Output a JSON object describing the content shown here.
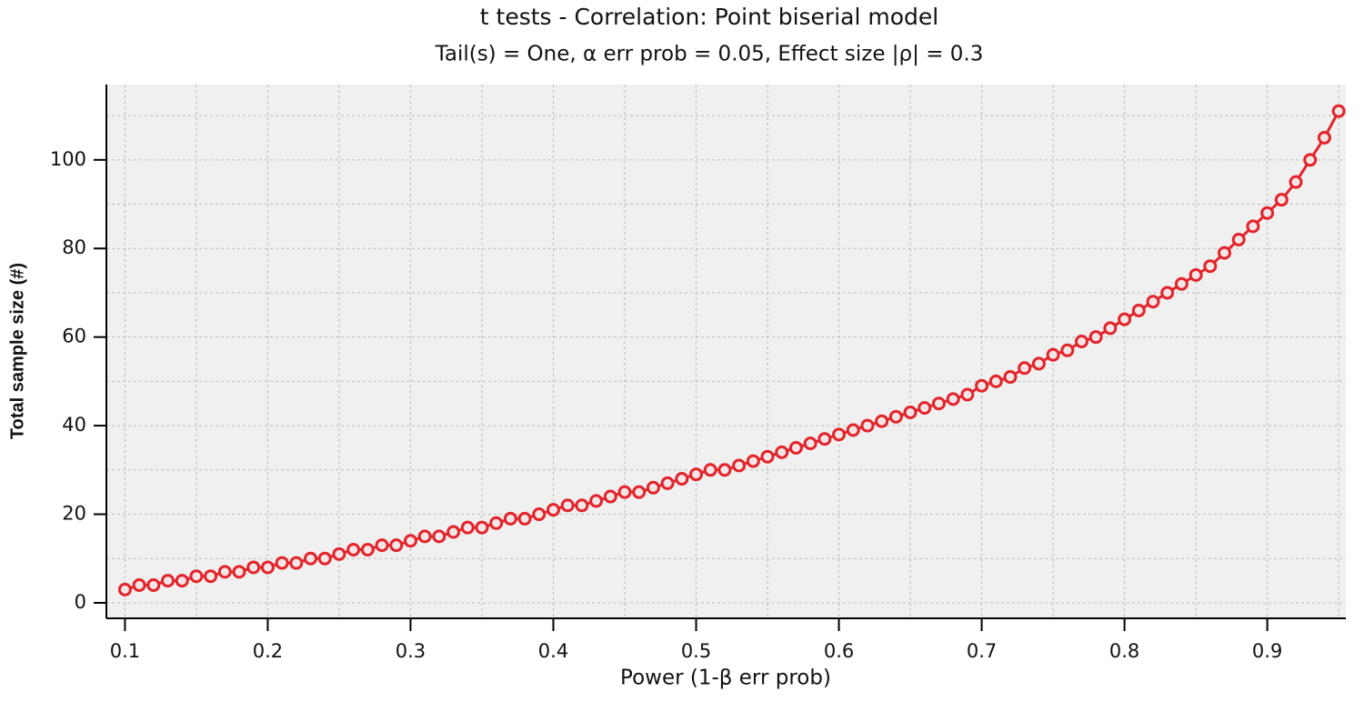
{
  "chart_data": {
    "type": "line",
    "title": "t tests - Correlation: Point biserial model",
    "subtitle": "Tail(s) = One, α err prob = 0.05, Effect size |ρ| = 0.3",
    "x_label": "Power (1-β err prob)",
    "y_label": "Total sample size (#)",
    "x": [
      0.1,
      0.11,
      0.12,
      0.13,
      0.14,
      0.15,
      0.16,
      0.17,
      0.18,
      0.19,
      0.2,
      0.21,
      0.22,
      0.23,
      0.24,
      0.25,
      0.26,
      0.27,
      0.28,
      0.29,
      0.3,
      0.31,
      0.32,
      0.33,
      0.34,
      0.35,
      0.36,
      0.37,
      0.38,
      0.39,
      0.4,
      0.41,
      0.42,
      0.43,
      0.44,
      0.45,
      0.46,
      0.47,
      0.48,
      0.49,
      0.5,
      0.51,
      0.52,
      0.53,
      0.54,
      0.55,
      0.56,
      0.57,
      0.58,
      0.59,
      0.6,
      0.61,
      0.62,
      0.63,
      0.64,
      0.65,
      0.66,
      0.67,
      0.68,
      0.69,
      0.7,
      0.71,
      0.72,
      0.73,
      0.74,
      0.75,
      0.76,
      0.77,
      0.78,
      0.79,
      0.8,
      0.81,
      0.82,
      0.83,
      0.84,
      0.85,
      0.86,
      0.87,
      0.88,
      0.89,
      0.9,
      0.91,
      0.92,
      0.93,
      0.94,
      0.95
    ],
    "values": [
      3,
      4,
      4,
      5,
      5,
      6,
      6,
      7,
      7,
      8,
      8,
      9,
      9,
      10,
      10,
      11,
      12,
      12,
      13,
      13,
      14,
      15,
      15,
      16,
      17,
      17,
      18,
      19,
      19,
      20,
      21,
      22,
      22,
      23,
      24,
      25,
      25,
      26,
      27,
      28,
      29,
      30,
      30,
      31,
      32,
      33,
      34,
      35,
      36,
      37,
      38,
      39,
      40,
      41,
      42,
      43,
      44,
      45,
      46,
      47,
      49,
      50,
      51,
      53,
      54,
      56,
      57,
      59,
      60,
      62,
      64,
      66,
      68,
      70,
      72,
      74,
      76,
      79,
      82,
      85,
      88,
      91,
      95,
      100,
      105,
      111
    ],
    "color": "#e3242b",
    "xlim": [
      0.087,
      0.955
    ],
    "ylim": [
      -3.5,
      117
    ],
    "xticks": [
      0.1,
      0.2,
      0.3,
      0.4,
      0.5,
      0.6,
      0.7,
      0.8,
      0.9
    ],
    "yticks": [
      0,
      20,
      40,
      60,
      80,
      100
    ],
    "xgrid": [
      0.1,
      0.15,
      0.2,
      0.25,
      0.3,
      0.35,
      0.4,
      0.45,
      0.5,
      0.55,
      0.6,
      0.65,
      0.7,
      0.75,
      0.8,
      0.85,
      0.9,
      0.95
    ],
    "ygrid": [
      0,
      10,
      20,
      30,
      40,
      50,
      60,
      70,
      80,
      90,
      100,
      110
    ],
    "grid": true
  }
}
